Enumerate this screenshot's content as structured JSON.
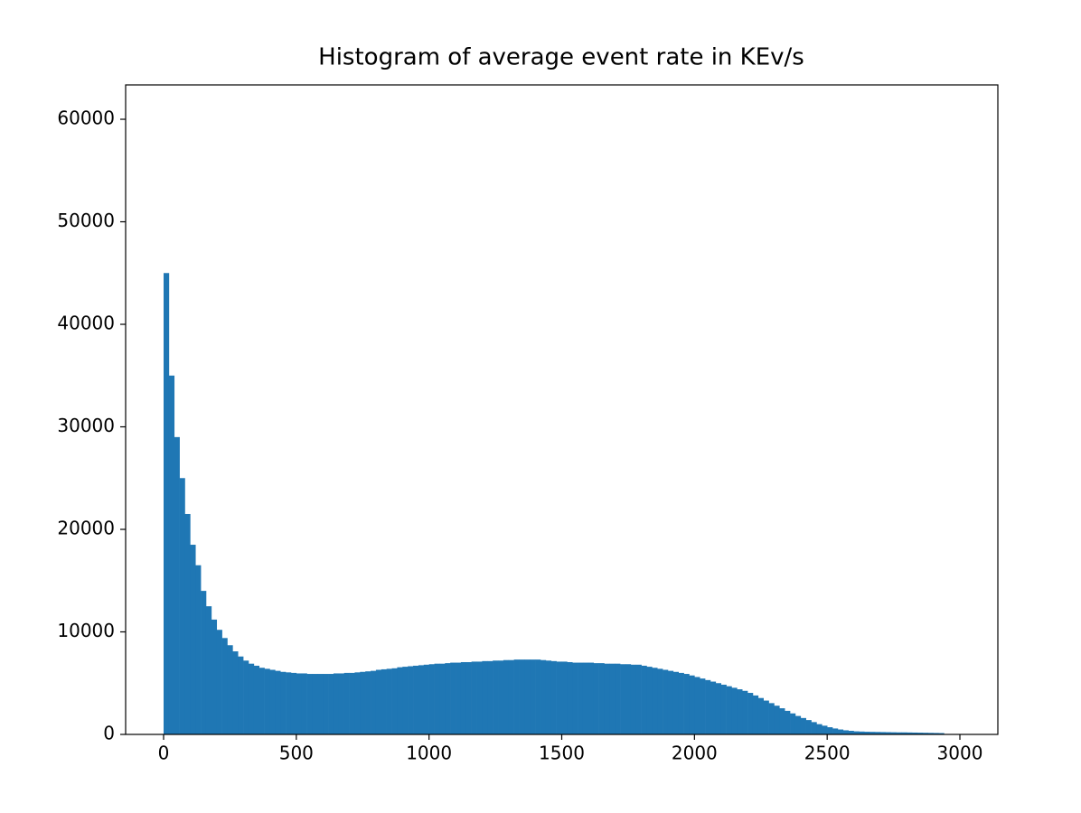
{
  "chart_data": {
    "type": "histogram",
    "title": "Histogram of average event rate in KEv/s",
    "color": "#1f77b4",
    "bins": [
      0,
      20,
      40,
      60,
      80,
      100,
      120,
      140,
      160,
      180,
      200,
      220,
      240,
      260,
      280,
      300,
      320,
      340,
      360,
      380,
      400,
      420,
      440,
      460,
      480,
      500,
      520,
      540,
      560,
      580,
      600,
      620,
      640,
      660,
      680,
      700,
      720,
      740,
      760,
      780,
      800,
      820,
      840,
      860,
      880,
      900,
      920,
      940,
      960,
      980,
      1000,
      1020,
      1040,
      1060,
      1080,
      1100,
      1120,
      1140,
      1160,
      1180,
      1200,
      1220,
      1240,
      1260,
      1280,
      1300,
      1320,
      1340,
      1360,
      1380,
      1400,
      1420,
      1440,
      1460,
      1480,
      1500,
      1520,
      1540,
      1560,
      1580,
      1600,
      1620,
      1640,
      1660,
      1680,
      1700,
      1720,
      1740,
      1760,
      1780,
      1800,
      1820,
      1840,
      1860,
      1880,
      1900,
      1920,
      1940,
      1960,
      1980,
      2000,
      2020,
      2040,
      2060,
      2080,
      2100,
      2120,
      2140,
      2160,
      2180,
      2200,
      2220,
      2240,
      2260,
      2280,
      2300,
      2320,
      2340,
      2360,
      2380,
      2400,
      2420,
      2440,
      2460,
      2480,
      2500,
      2520,
      2540,
      2560,
      2580,
      2600,
      2620,
      2640,
      2660,
      2680,
      2700,
      2720,
      2740,
      2760,
      2780,
      2800,
      2820,
      2840,
      2860,
      2880,
      2900,
      2920,
      2940
    ],
    "values": [
      45000,
      35000,
      29000,
      25000,
      21500,
      18500,
      16500,
      14000,
      12500,
      11200,
      10200,
      9400,
      8700,
      8100,
      7600,
      7200,
      6900,
      6700,
      6500,
      6400,
      6300,
      6200,
      6100,
      6050,
      6000,
      5950,
      5950,
      5900,
      5900,
      5900,
      5900,
      5900,
      5950,
      5950,
      6000,
      6000,
      6050,
      6100,
      6150,
      6200,
      6300,
      6350,
      6400,
      6450,
      6550,
      6600,
      6650,
      6700,
      6750,
      6800,
      6850,
      6900,
      6900,
      6950,
      7000,
      7000,
      7050,
      7050,
      7100,
      7100,
      7150,
      7150,
      7200,
      7200,
      7250,
      7250,
      7300,
      7300,
      7300,
      7300,
      7300,
      7250,
      7200,
      7150,
      7100,
      7100,
      7050,
      7000,
      7000,
      7000,
      7000,
      6950,
      6950,
      6900,
      6900,
      6900,
      6850,
      6850,
      6800,
      6800,
      6700,
      6600,
      6500,
      6400,
      6300,
      6200,
      6100,
      6000,
      5900,
      5750,
      5600,
      5450,
      5300,
      5150,
      5000,
      4850,
      4700,
      4550,
      4400,
      4250,
      4050,
      3800,
      3550,
      3300,
      3050,
      2800,
      2550,
      2300,
      2050,
      1800,
      1600,
      1400,
      1200,
      1000,
      850,
      700,
      580,
      480,
      400,
      350,
      300,
      280,
      260,
      250,
      240,
      230,
      220,
      210,
      200,
      200,
      190,
      180,
      170,
      160,
      150,
      140,
      130
    ],
    "xlim": [
      -143,
      3143
    ],
    "xticks": [
      0,
      500,
      1000,
      1500,
      2000,
      2500,
      3000
    ],
    "ylim": [
      0,
      63350
    ],
    "yticks": [
      0,
      10000,
      20000,
      30000,
      40000,
      50000,
      60000
    ]
  }
}
